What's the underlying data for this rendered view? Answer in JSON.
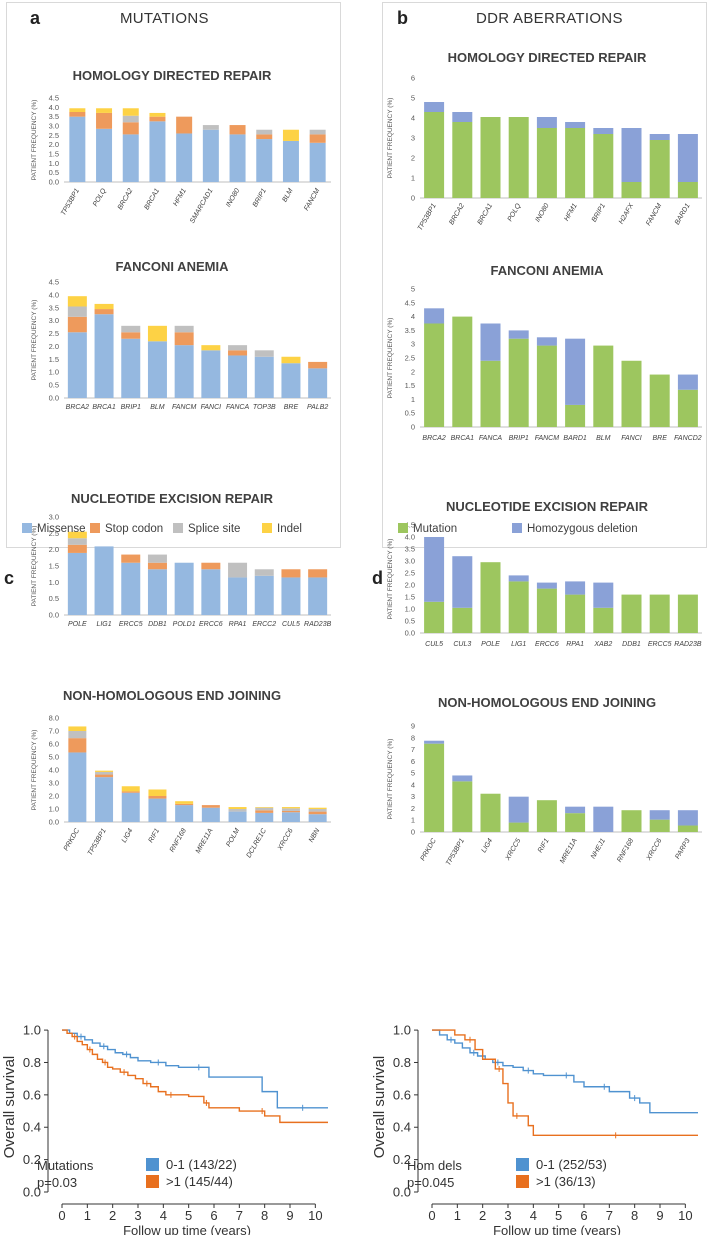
{
  "panels": {
    "a": {
      "letter": "a",
      "title": "MUTATIONS"
    },
    "b": {
      "letter": "b",
      "title": "DDR ABERRATIONS"
    },
    "c": {
      "letter": "c"
    },
    "d": {
      "letter": "d"
    }
  },
  "colors": {
    "missense": "#95b8e0",
    "stop_codon": "#ee9a5c",
    "splice_site": "#c0c0c0",
    "indel": "#fdd245",
    "mutation": "#9dc65f",
    "homozygous_deletion": "#8aa1d7",
    "km_low": "#4f92d0",
    "km_high": "#e8701f"
  },
  "legends": {
    "a": [
      "Missense",
      "Stop codon",
      "Splice site",
      "Indel"
    ],
    "b": [
      "Mutation",
      "Homozygous deletion"
    ]
  },
  "chart_data": [
    {
      "id": "a1",
      "type": "bar",
      "stacked": true,
      "title": "HOMOLOGY DIRECTED REPAIR",
      "ylabel": "PATIENT FREQUENCY (%)",
      "ylim": [
        0,
        4.5
      ],
      "yticks": [
        "0.0",
        "0.5",
        "1.0",
        "1.5",
        "2.0",
        "2.5",
        "3.0",
        "3.5",
        "4.0",
        "4.5"
      ],
      "categories": [
        "TP53BP1",
        "POLQ",
        "BRCA2",
        "BRCA1",
        "HFM1",
        "SMARCAD1",
        "INO80",
        "BRIP1",
        "BLM",
        "FANCM"
      ],
      "series": [
        {
          "name": "Missense",
          "values": [
            3.5,
            2.85,
            2.55,
            3.25,
            2.6,
            2.8,
            2.55,
            2.3,
            2.2,
            2.1
          ]
        },
        {
          "name": "Stop codon",
          "values": [
            0.25,
            0.85,
            0.65,
            0.25,
            0.9,
            0,
            0.5,
            0.25,
            0,
            0.45
          ]
        },
        {
          "name": "Splice site",
          "values": [
            0,
            0,
            0.35,
            0,
            0,
            0.25,
            0,
            0.25,
            0,
            0.25
          ]
        },
        {
          "name": "Indel",
          "values": [
            0.2,
            0.25,
            0.4,
            0.2,
            0,
            0,
            0,
            0,
            0.6,
            0
          ]
        }
      ]
    },
    {
      "id": "a2",
      "type": "bar",
      "stacked": true,
      "title": "FANCONI ANEMIA",
      "ylabel": "PATIENT FREQUENCY (%)",
      "ylim": [
        0,
        4.5
      ],
      "yticks": [
        "0.0",
        "0.5",
        "1.0",
        "1.5",
        "2.0",
        "2.5",
        "3.0",
        "3.5",
        "4.0",
        "4.5"
      ],
      "categories": [
        "BRCA2",
        "BRCA1",
        "BRIP1",
        "BLM",
        "FANCM",
        "FANCI",
        "FANCA",
        "TOP3B",
        "BRE",
        "PALB2"
      ],
      "series": [
        {
          "name": "Missense",
          "values": [
            2.55,
            3.25,
            2.3,
            2.2,
            2.05,
            1.85,
            1.65,
            1.6,
            1.35,
            1.15
          ]
        },
        {
          "name": "Stop codon",
          "values": [
            0.6,
            0.2,
            0.25,
            0,
            0.5,
            0,
            0.2,
            0,
            0,
            0.25
          ]
        },
        {
          "name": "Splice site",
          "values": [
            0.4,
            0,
            0.25,
            0,
            0.25,
            0,
            0.2,
            0.25,
            0,
            0
          ]
        },
        {
          "name": "Indel",
          "values": [
            0.4,
            0.2,
            0,
            0.6,
            0,
            0.2,
            0,
            0,
            0.25,
            0
          ]
        }
      ]
    },
    {
      "id": "a3",
      "type": "bar",
      "stacked": true,
      "title": "NUCLEOTIDE EXCISION REPAIR",
      "ylabel": "PATIENT FREQUENCY (%)",
      "ylim": [
        0,
        3.0
      ],
      "yticks": [
        "0.0",
        "0.5",
        "1.0",
        "1.5",
        "2.0",
        "2.5",
        "3.0"
      ],
      "categories": [
        "POLE",
        "LIG1",
        "ERCC5",
        "DDB1",
        "POLD1",
        "ERCC6",
        "RPA1",
        "ERCC2",
        "CUL5",
        "RAD23B"
      ],
      "series": [
        {
          "name": "Missense",
          "values": [
            1.9,
            2.1,
            1.6,
            1.4,
            1.6,
            1.4,
            1.15,
            1.2,
            1.15,
            1.15
          ]
        },
        {
          "name": "Stop codon",
          "values": [
            0.25,
            0,
            0.25,
            0.2,
            0,
            0.2,
            0,
            0,
            0.25,
            0.25
          ]
        },
        {
          "name": "Splice site",
          "values": [
            0.2,
            0,
            0,
            0.25,
            0,
            0,
            0.45,
            0.2,
            0,
            0
          ]
        },
        {
          "name": "Indel",
          "values": [
            0.2,
            0,
            0,
            0,
            0,
            0,
            0,
            0,
            0,
            0
          ]
        }
      ]
    },
    {
      "id": "a4",
      "type": "bar",
      "stacked": true,
      "title": "NON-HOMOLOGOUS END JOINING",
      "ylabel": "PATIENT FREQUENCY (%)",
      "ylim": [
        0,
        8.0
      ],
      "yticks": [
        "0.0",
        "1.0",
        "2.0",
        "3.0",
        "4.0",
        "5.0",
        "6.0",
        "7.0",
        "8.0"
      ],
      "categories": [
        "PRKDC",
        "TP53BP1",
        "LIG4",
        "RIF1",
        "RNF168",
        "MRE11A",
        "POLM",
        "DCLRE1C",
        "XRCC6",
        "NBN"
      ],
      "series": [
        {
          "name": "Missense",
          "values": [
            5.35,
            3.45,
            2.25,
            1.8,
            1.3,
            1.1,
            0.8,
            0.7,
            0.75,
            0.6
          ]
        },
        {
          "name": "Stop codon",
          "values": [
            1.1,
            0.2,
            0.1,
            0.2,
            0.1,
            0.2,
            0,
            0.2,
            0.1,
            0.2
          ]
        },
        {
          "name": "Splice site",
          "values": [
            0.55,
            0.2,
            0,
            0,
            0,
            0,
            0.2,
            0.2,
            0.2,
            0.2
          ]
        },
        {
          "name": "Indel",
          "values": [
            0.35,
            0.1,
            0.4,
            0.5,
            0.2,
            0,
            0.15,
            0.05,
            0.1,
            0.1
          ]
        }
      ]
    },
    {
      "id": "b1",
      "type": "bar",
      "stacked": true,
      "title": "HOMOLOGY DIRECTED REPAIR",
      "ylabel": "PATIENT FREQUENCY (%)",
      "ylim": [
        0,
        6
      ],
      "yticks": [
        "0",
        "1",
        "2",
        "3",
        "4",
        "5",
        "6"
      ],
      "categories": [
        "TP53BP1",
        "BRCA2",
        "BRCA1",
        "POLQ",
        "INO80",
        "HFM1",
        "BRIP1",
        "H2AFX",
        "FANCM",
        "BARD1"
      ],
      "series": [
        {
          "name": "Mutation",
          "values": [
            4.3,
            3.8,
            4.05,
            4.05,
            3.5,
            3.5,
            3.2,
            0.8,
            2.9,
            0.8
          ]
        },
        {
          "name": "Homozygous deletion",
          "values": [
            0.5,
            0.5,
            0,
            0,
            0.55,
            0.3,
            0.3,
            2.7,
            0.3,
            2.4
          ]
        }
      ]
    },
    {
      "id": "b2",
      "type": "bar",
      "stacked": true,
      "title": "FANCONI ANEMIA",
      "ylabel": "PATIENT FREQUENCY (%)",
      "ylim": [
        0,
        5
      ],
      "yticks": [
        "0",
        "0.5",
        "1",
        "1.5",
        "2",
        "2.5",
        "3",
        "3.5",
        "4",
        "4.5",
        "5"
      ],
      "categories": [
        "BRCA2",
        "BRCA1",
        "FANCA",
        "BRIP1",
        "FANCM",
        "BARD1",
        "BLM",
        "FANCI",
        "BRE",
        "FANCD2"
      ],
      "series": [
        {
          "name": "Mutation",
          "values": [
            3.75,
            4.0,
            2.4,
            3.2,
            2.95,
            0.8,
            2.95,
            2.4,
            1.9,
            1.35
          ]
        },
        {
          "name": "Homozygous deletion",
          "values": [
            0.55,
            0,
            1.35,
            0.3,
            0.3,
            2.4,
            0,
            0,
            0,
            0.55
          ]
        }
      ]
    },
    {
      "id": "b3",
      "type": "bar",
      "stacked": true,
      "title": "NUCLEOTIDE EXCISION REPAIR",
      "ylabel": "PATIENT FREQUENCY (%)",
      "ylim": [
        0,
        4.5
      ],
      "yticks": [
        "0.0",
        "0.5",
        "1.0",
        "1.5",
        "2.0",
        "2.5",
        "3.0",
        "3.5",
        "4.0",
        "4.5"
      ],
      "categories": [
        "CUL5",
        "CUL3",
        "POLE",
        "LIG1",
        "ERCC6",
        "RPA1",
        "XAB2",
        "DDB1",
        "ERCC5",
        "RAD23B"
      ],
      "series": [
        {
          "name": "Mutation",
          "values": [
            1.3,
            1.05,
            2.95,
            2.15,
            1.85,
            1.6,
            1.05,
            1.6,
            1.6,
            1.6
          ]
        },
        {
          "name": "Homozygous deletion",
          "values": [
            2.7,
            2.15,
            0,
            0.25,
            0.25,
            0.55,
            1.05,
            0,
            0,
            0
          ]
        }
      ]
    },
    {
      "id": "b4",
      "type": "bar",
      "stacked": true,
      "title": "NON-HOMOLOGOUS END JOINING",
      "ylabel": "PATIENT FREQUENCY (%)",
      "ylim": [
        0,
        9
      ],
      "yticks": [
        "0",
        "1",
        "2",
        "3",
        "4",
        "5",
        "6",
        "7",
        "8",
        "9"
      ],
      "categories": [
        "PRKDC",
        "TP53BP1",
        "LIG4",
        "XRCC5",
        "RIF1",
        "MRE11A",
        "NHEJ1",
        "RNF168",
        "XRCC6",
        "PARP3"
      ],
      "series": [
        {
          "name": "Mutation",
          "values": [
            7.5,
            4.3,
            3.25,
            0.8,
            2.7,
            1.6,
            0,
            1.85,
            1.05,
            0.55
          ]
        },
        {
          "name": "Homozygous deletion",
          "values": [
            0.25,
            0.5,
            0,
            2.2,
            0,
            0.55,
            2.15,
            0,
            0.8,
            1.3
          ]
        }
      ]
    },
    {
      "id": "c",
      "type": "line",
      "title": "",
      "xlabel": "Follow up time (years)",
      "ylabel": "Overall survival",
      "xlim": [
        0,
        10.5
      ],
      "ylim": [
        0,
        1.05
      ],
      "xticks": [
        "0",
        "1",
        "2",
        "3",
        "4",
        "5",
        "6",
        "7",
        "8",
        "9",
        "10"
      ],
      "yticks": [
        "0.0",
        "0.2",
        "0.4",
        "0.6",
        "0.8",
        "1.0"
      ],
      "legend_title": "Mutations",
      "pvalue": "p=0.03",
      "series": [
        {
          "name": "0-1 (143/22)",
          "x": [
            0,
            0.3,
            0.6,
            0.9,
            1.2,
            1.5,
            1.8,
            2.1,
            2.4,
            2.7,
            3.0,
            3.5,
            4.1,
            4.6,
            5.0,
            5.8,
            7.9,
            8.5,
            10.5
          ],
          "y": [
            1.0,
            0.98,
            0.96,
            0.94,
            0.92,
            0.9,
            0.88,
            0.86,
            0.85,
            0.83,
            0.81,
            0.8,
            0.78,
            0.77,
            0.77,
            0.71,
            0.62,
            0.52,
            0.52
          ]
        },
        {
          "name": ">1 (145/44)",
          "x": [
            0,
            0.2,
            0.4,
            0.6,
            0.8,
            1.0,
            1.2,
            1.4,
            1.6,
            1.8,
            2.0,
            2.3,
            2.6,
            2.9,
            3.2,
            3.5,
            3.8,
            4.1,
            4.5,
            5.0,
            5.6,
            5.8,
            7.0,
            7.8,
            8.0,
            8.6,
            10.5
          ],
          "y": [
            1.0,
            0.98,
            0.96,
            0.93,
            0.91,
            0.88,
            0.85,
            0.82,
            0.8,
            0.77,
            0.76,
            0.74,
            0.72,
            0.7,
            0.67,
            0.65,
            0.62,
            0.6,
            0.6,
            0.59,
            0.55,
            0.52,
            0.5,
            0.5,
            0.47,
            0.43,
            0.43
          ]
        }
      ]
    },
    {
      "id": "d",
      "type": "line",
      "title": "",
      "xlabel": "Follow up time (years)",
      "ylabel": "Overall survival",
      "xlim": [
        0,
        10.5
      ],
      "ylim": [
        0,
        1.05
      ],
      "xticks": [
        "0",
        "1",
        "2",
        "3",
        "4",
        "5",
        "6",
        "7",
        "8",
        "9",
        "10"
      ],
      "yticks": [
        "0.0",
        "0.2",
        "0.4",
        "0.6",
        "0.8",
        "1.0"
      ],
      "legend_title": "Hom dels",
      "pvalue": "p=0.045",
      "series": [
        {
          "name": "0-1 (252/53)",
          "x": [
            0,
            0.3,
            0.6,
            0.9,
            1.2,
            1.5,
            1.8,
            2.1,
            2.4,
            2.8,
            3.2,
            3.6,
            4.0,
            4.4,
            5.0,
            5.6,
            6.0,
            6.6,
            7.0,
            7.4,
            7.8,
            8.2,
            8.6,
            10.5
          ],
          "y": [
            1.0,
            0.97,
            0.94,
            0.92,
            0.89,
            0.86,
            0.84,
            0.82,
            0.8,
            0.78,
            0.77,
            0.75,
            0.73,
            0.72,
            0.72,
            0.68,
            0.65,
            0.65,
            0.62,
            0.62,
            0.58,
            0.55,
            0.49,
            0.49
          ]
        },
        {
          "name": ">1 (36/13)",
          "x": [
            0,
            0.9,
            1.3,
            1.7,
            2.0,
            2.5,
            2.8,
            3.0,
            3.2,
            3.5,
            3.8,
            4.0,
            10.5
          ],
          "y": [
            1.0,
            0.97,
            0.94,
            0.88,
            0.82,
            0.76,
            0.67,
            0.55,
            0.47,
            0.47,
            0.41,
            0.35,
            0.35
          ]
        }
      ]
    }
  ]
}
